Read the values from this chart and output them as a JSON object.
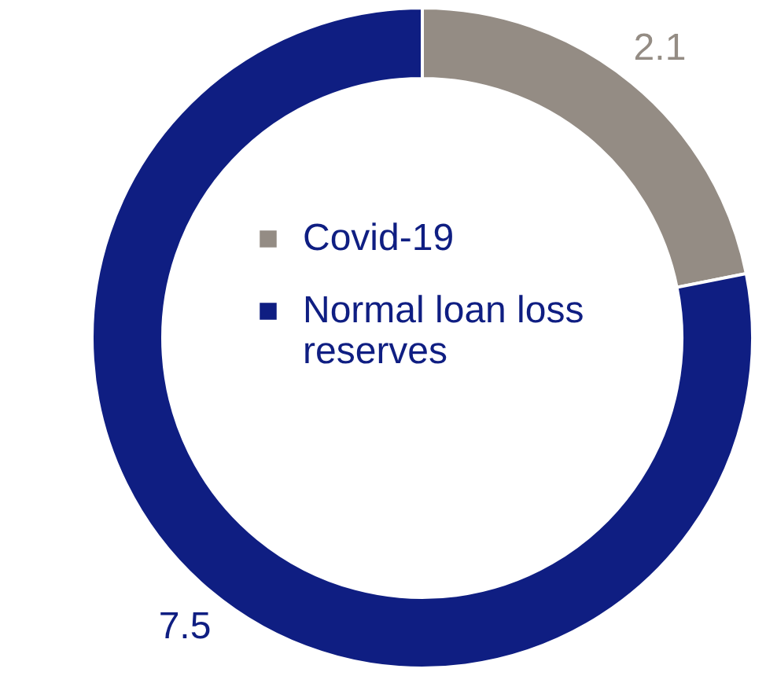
{
  "chart_data": {
    "type": "donut",
    "categories": [
      "Covid-19",
      "Normal loan loss reserves"
    ],
    "values": [
      2.1,
      7.5
    ],
    "colors": [
      "#948c84",
      "#0f1e82"
    ],
    "data_labels": true,
    "legend": "center"
  }
}
